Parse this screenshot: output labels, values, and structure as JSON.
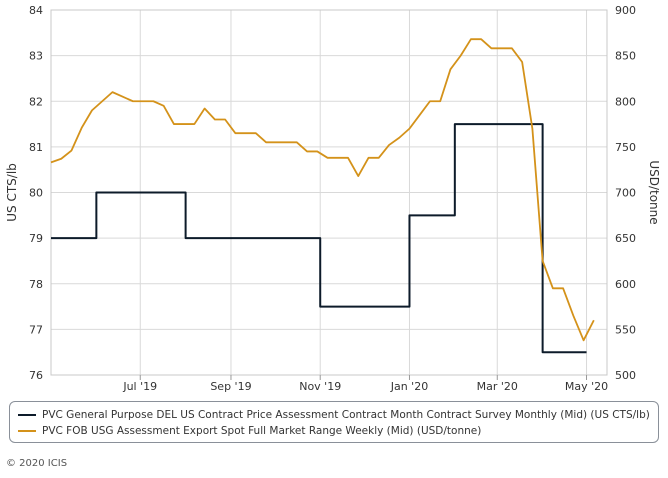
{
  "chart_data": {
    "type": "line",
    "x_ticks": [
      "Jul '19",
      "Sep '19",
      "Nov '19",
      "Jan '20",
      "Mar '20",
      "May '20"
    ],
    "ylabel_left": "US CTS/lb",
    "ylabel_right": "USD/tonne",
    "ylim_left": [
      76,
      84
    ],
    "ylim_right": [
      500,
      900
    ],
    "yticks_left": [
      "76",
      "77",
      "78",
      "79",
      "80",
      "81",
      "82",
      "83",
      "84"
    ],
    "yticks_right": [
      "500",
      "550",
      "600",
      "650",
      "700",
      "750",
      "800",
      "850",
      "900"
    ],
    "grid": true,
    "legend_position": "bottom",
    "series": [
      {
        "name": "PVC General Purpose DEL US Contract Price Assessment Contract Month Contract Survey Monthly (Mid) (US CTS/lb)",
        "axis": "left",
        "color": "#0d1b2a",
        "step": true,
        "x": [
          "2019-05-01",
          "2019-06-01",
          "2019-08-01",
          "2019-11-01",
          "2020-01-01",
          "2020-02-01",
          "2020-04-01",
          "2020-05-01"
        ],
        "y": [
          79.0,
          80.0,
          79.0,
          77.5,
          79.5,
          81.5,
          76.5,
          76.5
        ]
      },
      {
        "name": "PVC FOB USG Assessment Export Spot Full Market Range Weekly (Mid) (USD/tonne)",
        "axis": "right",
        "color": "#d4921a",
        "step": false,
        "x": [
          "2019-05-01",
          "2019-05-08",
          "2019-05-15",
          "2019-05-22",
          "2019-05-29",
          "2019-06-05",
          "2019-06-12",
          "2019-06-19",
          "2019-06-26",
          "2019-07-03",
          "2019-07-10",
          "2019-07-17",
          "2019-07-24",
          "2019-07-31",
          "2019-08-07",
          "2019-08-14",
          "2019-08-21",
          "2019-08-28",
          "2019-09-04",
          "2019-09-11",
          "2019-09-18",
          "2019-09-25",
          "2019-10-02",
          "2019-10-09",
          "2019-10-16",
          "2019-10-23",
          "2019-10-30",
          "2019-11-06",
          "2019-11-13",
          "2019-11-20",
          "2019-11-27",
          "2019-12-04",
          "2019-12-11",
          "2019-12-18",
          "2019-12-25",
          "2020-01-01",
          "2020-01-08",
          "2020-01-15",
          "2020-01-22",
          "2020-01-29",
          "2020-02-05",
          "2020-02-12",
          "2020-02-19",
          "2020-02-26",
          "2020-03-04",
          "2020-03-11",
          "2020-03-18",
          "2020-03-25",
          "2020-04-01",
          "2020-04-08",
          "2020-04-15",
          "2020-04-22",
          "2020-04-29",
          "2020-05-06"
        ],
        "y": [
          733,
          737,
          746,
          771,
          790,
          800,
          810,
          805,
          800,
          800,
          800,
          795,
          775,
          775,
          775,
          792,
          780,
          780,
          765,
          765,
          765,
          755,
          755,
          755,
          755,
          745,
          745,
          738,
          738,
          738,
          718,
          738,
          738,
          752,
          760,
          770,
          785,
          800,
          800,
          835,
          850,
          868,
          868,
          858,
          858,
          858,
          843,
          770,
          625,
          595,
          595,
          565,
          538,
          560
        ]
      }
    ]
  },
  "footer": {
    "copyright": "© 2020 ICIS"
  }
}
